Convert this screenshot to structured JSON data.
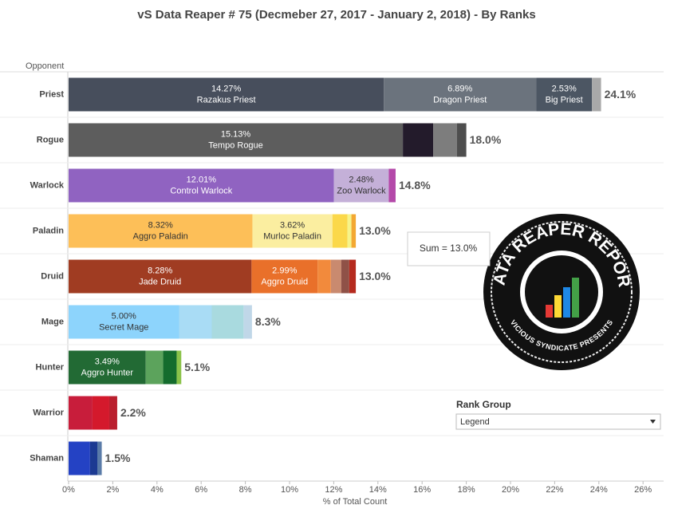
{
  "chart_data": {
    "type": "stacked-bar-horizontal",
    "title": "vS Data Reaper #  75 (Decmeber  27, 2017 - January 2, 2018) - By Ranks",
    "y_axis_label": "Opponent",
    "x_axis_label": "% of Total Count",
    "xlim": [
      0,
      26.9
    ],
    "xticks": [
      {
        "value": 0,
        "label": "0%"
      },
      {
        "value": 2,
        "label": "2%"
      },
      {
        "value": 4,
        "label": "4%"
      },
      {
        "value": 6,
        "label": "6%"
      },
      {
        "value": 8,
        "label": "8%"
      },
      {
        "value": 10,
        "label": "10%"
      },
      {
        "value": 12,
        "label": "12%"
      },
      {
        "value": 14,
        "label": "14%"
      },
      {
        "value": 16,
        "label": "16%"
      },
      {
        "value": 18,
        "label": "18%"
      },
      {
        "value": 20,
        "label": "20%"
      },
      {
        "value": 22,
        "label": "22%"
      },
      {
        "value": 24,
        "label": "24%"
      },
      {
        "value": 26,
        "label": "26%"
      }
    ],
    "categories": [
      "Priest",
      "Rogue",
      "Warlock",
      "Paladin",
      "Druid",
      "Mage",
      "Hunter",
      "Warrior",
      "Shaman"
    ],
    "bars": [
      {
        "segments": [
          {
            "name": "Razakus Priest",
            "value": 14.27,
            "value_label": "14.27%",
            "color": "#474e5c"
          },
          {
            "name": "Dragon Priest",
            "value": 6.89,
            "value_label": "6.89%",
            "color": "#6b737d"
          },
          {
            "name": "Big Priest",
            "value": 2.53,
            "value_label": "2.53%",
            "color": "#4c5663"
          },
          {
            "name": null,
            "value": 0.41,
            "color": "#a9a9a9"
          }
        ],
        "total": 24.1,
        "total_label": "24.1%"
      },
      {
        "segments": [
          {
            "name": "Tempo Rogue",
            "value": 15.13,
            "value_label": "15.13%",
            "color": "#5d5d5d"
          },
          {
            "name": null,
            "value": 1.37,
            "color": "#231b2b"
          },
          {
            "name": null,
            "value": 1.08,
            "color": "#7d7d7d"
          },
          {
            "name": null,
            "value": 0.42,
            "color": "#4e4e4e"
          }
        ],
        "total": 18.0,
        "total_label": "18.0%"
      },
      {
        "segments": [
          {
            "name": "Control Warlock",
            "value": 12.01,
            "value_label": "12.01%",
            "color": "#9063c1"
          },
          {
            "name": "Zoo Warlock",
            "value": 2.48,
            "value_label": "2.48%",
            "color": "#c4b0d8"
          },
          {
            "name": null,
            "value": 0.31,
            "color": "#b449a9"
          }
        ],
        "total": 14.8,
        "total_label": "14.8%"
      },
      {
        "segments": [
          {
            "name": "Aggro Paladin",
            "value": 8.32,
            "value_label": "8.32%",
            "color": "#fdbf58"
          },
          {
            "name": "Murloc Paladin",
            "value": 3.62,
            "value_label": "3.62%",
            "color": "#fbeea0"
          },
          {
            "name": null,
            "value": 0.68,
            "color": "#fbd84a"
          },
          {
            "name": null,
            "value": 0.18,
            "color": "#f6f48a"
          },
          {
            "name": null,
            "value": 0.2,
            "color": "#f3a832"
          }
        ],
        "total": 13.0,
        "total_label": "13.0%"
      },
      {
        "segments": [
          {
            "name": "Jade Druid",
            "value": 8.28,
            "value_label": "8.28%",
            "color": "#a03c22"
          },
          {
            "name": "Aggro Druid",
            "value": 2.99,
            "value_label": "2.99%",
            "color": "#e9702a"
          },
          {
            "name": null,
            "value": 0.6,
            "color": "#f28a3c"
          },
          {
            "name": null,
            "value": 0.47,
            "color": "#c98a6f"
          },
          {
            "name": null,
            "value": 0.36,
            "color": "#8f5147"
          },
          {
            "name": null,
            "value": 0.3,
            "color": "#b52a1e"
          }
        ],
        "total": 13.0,
        "total_label": "13.0%"
      },
      {
        "segments": [
          {
            "name": "Secret Mage",
            "value": 5.0,
            "value_label": "5.00%",
            "color": "#8dd4fc"
          },
          {
            "name": null,
            "value": 1.48,
            "color": "#a9dcf5"
          },
          {
            "name": null,
            "value": 1.44,
            "color": "#a9dadf"
          },
          {
            "name": null,
            "value": 0.38,
            "color": "#c0d7e8"
          }
        ],
        "total": 8.3,
        "total_label": "8.3%"
      },
      {
        "segments": [
          {
            "name": "Aggro Hunter",
            "value": 3.49,
            "value_label": "3.49%",
            "color": "#226a34"
          },
          {
            "name": null,
            "value": 0.79,
            "color": "#5ca35c"
          },
          {
            "name": null,
            "value": 0.61,
            "color": "#146c2d"
          },
          {
            "name": null,
            "value": 0.21,
            "color": "#8bc34a"
          }
        ],
        "total": 5.1,
        "total_label": "5.1%"
      },
      {
        "segments": [
          {
            "name": null,
            "value": 1.08,
            "color": "#c81d3b"
          },
          {
            "name": null,
            "value": 0.76,
            "color": "#d4192c"
          },
          {
            "name": null,
            "value": 0.36,
            "color": "#ba1f2e"
          }
        ],
        "total": 2.2,
        "total_label": "2.2%"
      },
      {
        "segments": [
          {
            "name": null,
            "value": 0.97,
            "color": "#2442c4"
          },
          {
            "name": null,
            "value": 0.33,
            "color": "#1c3a92"
          },
          {
            "name": null,
            "value": 0.2,
            "color": "#5a7ba8"
          }
        ],
        "total": 1.5,
        "total_label": "1.5%"
      }
    ],
    "tooltip": "Sum = 13.0%",
    "legend_title": "Rank Group",
    "legend_dropdown": "Legend",
    "logo": {
      "title": "DATA REAPER REPORT",
      "subtitle": "VICIOUS SYNDICATE PRESENTS"
    }
  }
}
